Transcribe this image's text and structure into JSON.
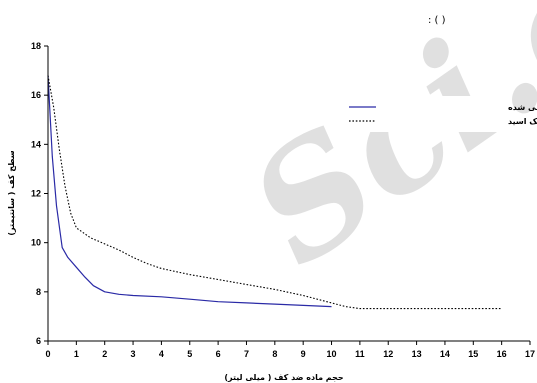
{
  "caption": ": ( )",
  "watermark": "Sci.org",
  "chart_data": {
    "type": "line",
    "title": "",
    "xlabel": "حجم ماده ضد کف ( میلی لیتر)",
    "ylabel": "سطح کف ( سانتیمتر)",
    "xlim": [
      0,
      17
    ],
    "ylim": [
      6,
      18
    ],
    "xticks": [
      0,
      1,
      2,
      3,
      4,
      5,
      6,
      7,
      8,
      9,
      10,
      11,
      12,
      13,
      14,
      15,
      16,
      17
    ],
    "yticks": [
      6,
      8,
      10,
      12,
      14,
      16,
      18
    ],
    "grid": false,
    "legend_position": "top-right",
    "series": [
      {
        "name": "روغن سبوس برنج موم زدایی شده",
        "color": "#2a2aa6",
        "style": "solid",
        "x": [
          0,
          0.15,
          0.3,
          0.5,
          0.7,
          1.0,
          1.3,
          1.6,
          2.0,
          2.5,
          3.0,
          4.0,
          5.0,
          6.0,
          7.0,
          8.0,
          9.0,
          10.0
        ],
        "y": [
          16.8,
          13.5,
          11.5,
          9.8,
          9.4,
          9.0,
          8.6,
          8.25,
          8.0,
          7.9,
          7.85,
          7.8,
          7.7,
          7.6,
          7.55,
          7.5,
          7.45,
          7.4
        ]
      },
      {
        "name": "اولئیک اسید",
        "color": "#000000",
        "style": "dotted",
        "x": [
          0,
          0.2,
          0.4,
          0.6,
          0.8,
          1.0,
          1.5,
          2.0,
          2.5,
          3.0,
          3.5,
          4.0,
          5.0,
          6.0,
          7.0,
          8.0,
          9.0,
          10.0,
          10.5,
          11.0,
          12.0,
          13.0,
          14.0,
          15.0,
          16.0
        ],
        "y": [
          16.8,
          15.5,
          13.8,
          12.3,
          11.2,
          10.6,
          10.2,
          9.95,
          9.7,
          9.4,
          9.15,
          8.95,
          8.7,
          8.5,
          8.3,
          8.1,
          7.85,
          7.55,
          7.4,
          7.32,
          7.32,
          7.32,
          7.32,
          7.32,
          7.32
        ]
      }
    ]
  }
}
